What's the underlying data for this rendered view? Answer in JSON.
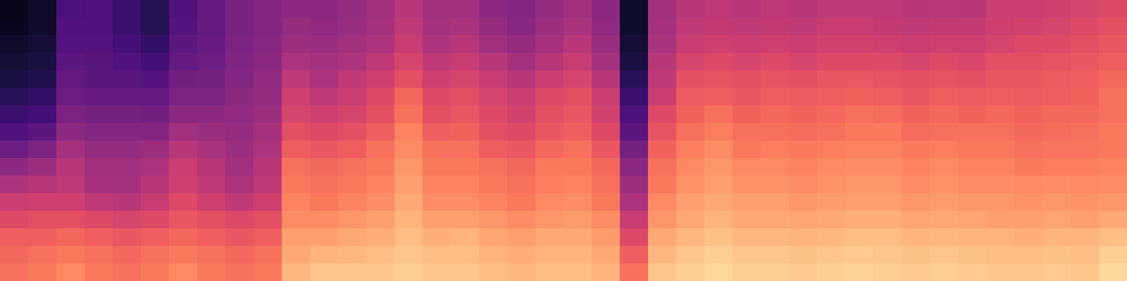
{
  "chart_data": {
    "type": "heatmap",
    "tick_labels": false,
    "color": "magma",
    "zlim": [
      0,
      100
    ],
    "cells": [
      [
        70,
        68,
        66,
        60,
        55,
        48,
        40,
        32,
        25,
        20,
        16,
        12,
        10,
        8,
        6,
        5
      ],
      [
        72,
        70,
        66,
        62,
        56,
        50,
        44,
        36,
        28,
        22,
        18,
        14,
        12,
        10,
        8,
        8
      ],
      [
        75,
        72,
        68,
        62,
        56,
        52,
        50,
        46,
        40,
        36,
        32,
        30,
        28,
        26,
        25,
        24
      ],
      [
        72,
        70,
        66,
        60,
        52,
        46,
        45,
        42,
        38,
        34,
        30,
        28,
        27,
        26,
        25,
        25
      ],
      [
        70,
        68,
        64,
        58,
        50,
        46,
        45,
        42,
        38,
        34,
        30,
        28,
        25,
        22,
        20,
        20
      ],
      [
        72,
        70,
        66,
        60,
        54,
        50,
        48,
        44,
        38,
        33,
        30,
        26,
        22,
        18,
        15,
        15
      ],
      [
        75,
        72,
        68,
        64,
        60,
        56,
        55,
        50,
        45,
        40,
        36,
        33,
        30,
        28,
        26,
        25
      ],
      [
        72,
        70,
        66,
        62,
        56,
        52,
        50,
        47,
        43,
        40,
        36,
        34,
        32,
        31,
        30,
        30
      ],
      [
        70,
        68,
        64,
        60,
        52,
        48,
        45,
        44,
        42,
        41,
        40,
        38,
        37,
        36,
        35,
        35
      ],
      [
        72,
        70,
        66,
        62,
        56,
        52,
        50,
        48,
        46,
        44,
        42,
        41,
        40,
        39,
        38,
        38
      ],
      [
        85,
        82,
        80,
        76,
        74,
        72,
        70,
        66,
        62,
        58,
        56,
        52,
        48,
        44,
        42,
        40
      ],
      [
        88,
        84,
        80,
        76,
        72,
        70,
        68,
        64,
        60,
        56,
        52,
        48,
        46,
        43,
        41,
        40
      ],
      [
        88,
        85,
        82,
        78,
        74,
        72,
        70,
        66,
        62,
        58,
        55,
        52,
        48,
        45,
        43,
        42
      ],
      [
        88,
        86,
        83,
        80,
        76,
        74,
        72,
        70,
        66,
        62,
        60,
        56,
        52,
        48,
        46,
        45
      ],
      [
        90,
        88,
        86,
        84,
        82,
        80,
        78,
        76,
        74,
        70,
        68,
        62,
        58,
        54,
        52,
        50
      ],
      [
        88,
        86,
        83,
        80,
        76,
        74,
        72,
        70,
        66,
        62,
        60,
        56,
        52,
        48,
        46,
        45
      ],
      [
        88,
        86,
        84,
        80,
        76,
        74,
        72,
        70,
        67,
        64,
        62,
        58,
        54,
        50,
        47,
        45
      ],
      [
        86,
        84,
        81,
        78,
        74,
        72,
        70,
        66,
        62,
        60,
        58,
        54,
        50,
        45,
        42,
        40
      ],
      [
        85,
        83,
        80,
        76,
        72,
        70,
        68,
        64,
        60,
        57,
        55,
        50,
        46,
        42,
        39,
        38
      ],
      [
        86,
        84,
        82,
        78,
        75,
        73,
        72,
        68,
        64,
        62,
        60,
        55,
        50,
        46,
        44,
        42
      ],
      [
        86,
        84,
        82,
        79,
        76,
        74,
        72,
        70,
        66,
        64,
        62,
        58,
        54,
        50,
        47,
        45
      ],
      [
        84,
        82,
        79,
        76,
        72,
        70,
        68,
        64,
        60,
        57,
        55,
        50,
        46,
        43,
        41,
        40
      ],
      [
        70,
        66,
        60,
        54,
        48,
        44,
        40,
        34,
        28,
        24,
        20,
        16,
        12,
        10,
        8,
        8
      ],
      [
        88,
        85,
        82,
        78,
        75,
        72,
        70,
        67,
        63,
        60,
        55,
        52,
        50,
        47,
        46,
        45
      ],
      [
        90,
        88,
        85,
        82,
        80,
        77,
        75,
        73,
        70,
        67,
        65,
        62,
        58,
        54,
        52,
        50
      ],
      [
        92,
        90,
        87,
        84,
        82,
        80,
        78,
        76,
        73,
        70,
        66,
        63,
        60,
        56,
        53,
        52
      ],
      [
        90,
        88,
        85,
        82,
        80,
        77,
        75,
        72,
        70,
        67,
        64,
        62,
        58,
        55,
        52,
        50
      ],
      [
        90,
        88,
        85,
        82,
        80,
        77,
        75,
        73,
        70,
        68,
        66,
        63,
        60,
        56,
        53,
        52
      ],
      [
        89,
        87,
        84,
        81,
        78,
        76,
        74,
        72,
        69,
        67,
        65,
        62,
        58,
        55,
        52,
        50
      ],
      [
        90,
        88,
        85,
        82,
        79,
        77,
        75,
        73,
        70,
        68,
        66,
        64,
        60,
        57,
        54,
        52
      ],
      [
        91,
        89,
        86,
        83,
        80,
        78,
        76,
        74,
        72,
        70,
        67,
        64,
        60,
        57,
        54,
        52
      ],
      [
        90,
        88,
        86,
        83,
        80,
        78,
        76,
        74,
        72,
        69,
        66,
        63,
        60,
        56,
        53,
        52
      ],
      [
        89,
        87,
        84,
        81,
        78,
        76,
        74,
        72,
        69,
        67,
        64,
        62,
        58,
        55,
        52,
        50
      ],
      [
        90,
        88,
        85,
        82,
        79,
        77,
        75,
        73,
        70,
        68,
        66,
        63,
        60,
        56,
        53,
        51
      ],
      [
        89,
        87,
        84,
        81,
        78,
        76,
        74,
        72,
        70,
        67,
        65,
        62,
        59,
        56,
        53,
        50
      ],
      [
        88,
        86,
        84,
        80,
        78,
        76,
        74,
        72,
        70,
        68,
        66,
        64,
        62,
        58,
        56,
        55
      ],
      [
        88,
        86,
        83,
        80,
        77,
        75,
        72,
        70,
        68,
        67,
        65,
        64,
        62,
        60,
        57,
        55
      ],
      [
        89,
        87,
        84,
        81,
        78,
        76,
        73,
        71,
        69,
        68,
        66,
        65,
        63,
        60,
        58,
        56
      ],
      [
        88,
        86,
        84,
        80,
        77,
        75,
        73,
        71,
        70,
        68,
        67,
        66,
        64,
        62,
        60,
        58
      ],
      [
        92,
        90,
        86,
        82,
        78,
        76,
        74,
        72,
        72,
        70,
        70,
        68,
        66,
        64,
        62,
        60
      ]
    ]
  }
}
